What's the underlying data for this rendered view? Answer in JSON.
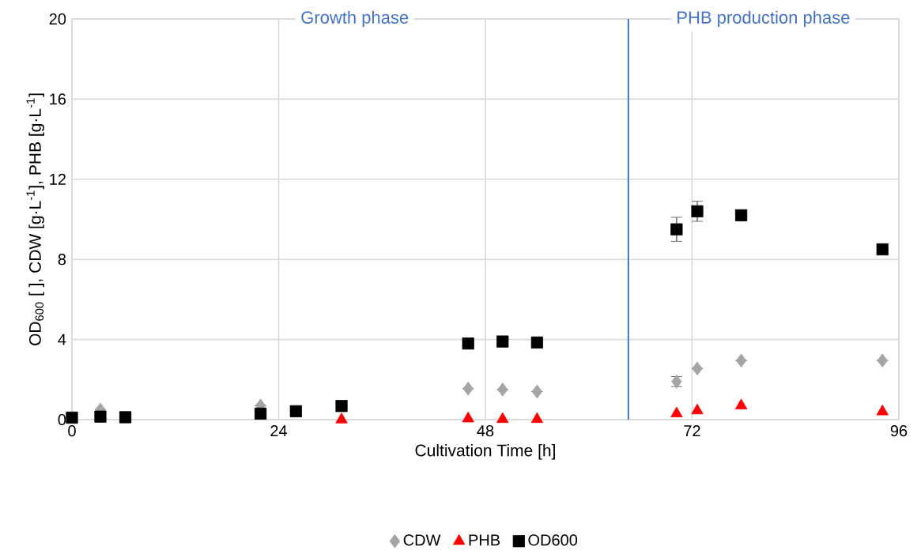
{
  "chart_data": {
    "type": "scatter",
    "xlabel": "Cultivation Time [h]",
    "ylabel": "OD$_{600}$ [ ], CDW [g·L$^{-1}$], PHB [g·L$^{-1}$]",
    "xlim": [
      0,
      96
    ],
    "ylim": [
      0,
      20
    ],
    "xticks": [
      0,
      24,
      48,
      72,
      96
    ],
    "yticks": [
      0,
      4,
      8,
      12,
      16,
      20
    ],
    "grid": true,
    "legend": "bottom",
    "annotations": [
      "Growth phase",
      "PHB production phase"
    ],
    "ref_lines": [
      {
        "axis": "x",
        "value": 64.6,
        "color": "#4472c4"
      }
    ],
    "series": [
      {
        "name": "CDW",
        "color": "#a5a5a5",
        "marker": "diamond",
        "x": [
          3.3,
          21.9,
          46,
          50,
          54,
          70.2,
          72.6,
          77.7,
          94.1
        ],
        "values": [
          0.5,
          0.7,
          1.55,
          1.5,
          1.4,
          1.9,
          2.55,
          2.95,
          2.95
        ],
        "errors": [
          null,
          null,
          null,
          null,
          null,
          0.25,
          null,
          null,
          null
        ]
      },
      {
        "name": "PHB",
        "color": "#ff0000",
        "marker": "triangle",
        "x": [
          31.3,
          46,
          50,
          54,
          70.2,
          72.6,
          77.7,
          94.1
        ],
        "values": [
          0.0,
          0.05,
          0.02,
          0.02,
          0.3,
          0.45,
          0.7,
          0.4
        ]
      },
      {
        "name": "OD600",
        "color": "#000000",
        "marker": "square",
        "x": [
          0,
          3.3,
          6.2,
          21.9,
          26,
          31.3,
          46,
          50,
          54,
          70.2,
          72.6,
          77.7,
          94.1
        ],
        "values": [
          0.1,
          0.15,
          0.12,
          0.3,
          0.42,
          0.68,
          3.8,
          3.9,
          3.85,
          9.5,
          10.4,
          10.2,
          8.5
        ],
        "errors": [
          null,
          null,
          null,
          null,
          null,
          null,
          null,
          null,
          null,
          0.6,
          0.5,
          null,
          null
        ]
      }
    ]
  }
}
